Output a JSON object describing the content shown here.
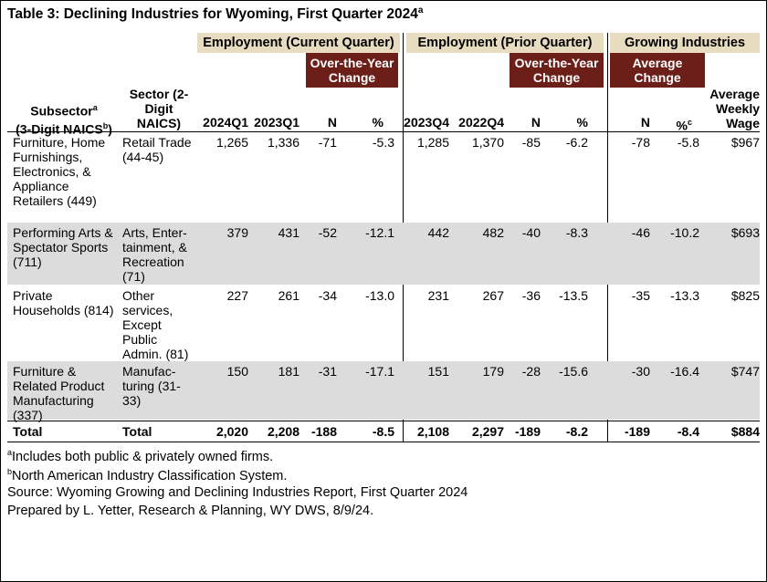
{
  "title": "Table 3: Declining Industries for Wyoming, First Quarter 2024",
  "title_sup": "a",
  "groups": {
    "current": "Employment (Current Quarter)",
    "prior": "Employment (Prior Quarter)",
    "growing": "Growing Industries"
  },
  "subgroups": {
    "current_change": "Over-the-Year Change",
    "prior_change": "Over-the-Year Change",
    "avg_change": "Average Change"
  },
  "headers": {
    "subsector_line1": "Subsector",
    "subsector_sup": "a",
    "subsector_line2": "(3-Digit NAICS",
    "subsector_sup2": "b",
    "subsector_close": ")",
    "sector": "Sector (2-Digit NAICS)",
    "q2024q1": "2024Q1",
    "q2023q1": "2023Q1",
    "n1": "N",
    "pct1": "%",
    "q2023q4": "2023Q4",
    "q2022q4": "2022Q4",
    "n2": "N",
    "pct2": "%",
    "n3": "N",
    "pct3": "%",
    "pct3_sup": "c",
    "wage": "Average Weekly Wage"
  },
  "rows": [
    {
      "subsector": "Furniture, Home Furnishings, Electronics, & Appliance Retailers (449)",
      "sector": "Retail Trade (44-45)",
      "c1": "1,265",
      "c2": "1,336",
      "c3": "-71",
      "c4": "-5.3",
      "c5": "1,285",
      "c6": "1,370",
      "c7": "-85",
      "c8": "-6.2",
      "c9": "-78",
      "c10": "-5.8",
      "c11": "$967"
    },
    {
      "subsector": "Performing Arts & Spectator Sports (711)",
      "sector": "Arts, Enter-tainment, & Recreation (71)",
      "c1": "379",
      "c2": "431",
      "c3": "-52",
      "c4": "-12.1",
      "c5": "442",
      "c6": "482",
      "c7": "-40",
      "c8": "-8.3",
      "c9": "-46",
      "c10": "-10.2",
      "c11": "$693"
    },
    {
      "subsector": "Private Households (814)",
      "sector": "Other services, Except Public Admin. (81)",
      "c1": "227",
      "c2": "261",
      "c3": "-34",
      "c4": "-13.0",
      "c5": "231",
      "c6": "267",
      "c7": "-36",
      "c8": "-13.5",
      "c9": "-35",
      "c10": "-13.3",
      "c11": "$825"
    },
    {
      "subsector": "Furniture & Related Product Manufacturing (337)",
      "sector": "Manufac-turing (31-33)",
      "c1": "150",
      "c2": "181",
      "c3": "-31",
      "c4": "-17.1",
      "c5": "151",
      "c6": "179",
      "c7": "-28",
      "c8": "-15.6",
      "c9": "-30",
      "c10": "-16.4",
      "c11": "$747"
    }
  ],
  "total": {
    "subsector": "Total",
    "sector": "Total",
    "c1": "2,020",
    "c2": "2,208",
    "c3": "-188",
    "c4": "-8.5",
    "c5": "2,108",
    "c6": "2,297",
    "c7": "-189",
    "c8": "-8.2",
    "c9": "-189",
    "c10": "-8.4",
    "c11": "$884"
  },
  "footnotes": {
    "a_mark": "a",
    "a": "Includes both public & privately owned firms.",
    "b_mark": "b",
    "b": "North American Industry Classification System.",
    "source": "Source: Wyoming Growing and Declining Industries Report, First Quarter 2024",
    "prepared": "Prepared by L. Yetter, Research & Planning, WY DWS, 8/9/24."
  },
  "colors": {
    "group_bg": "#e8dcc0",
    "subgroup_bg": "#6b1f18",
    "row_shade": "#dcdcdc"
  }
}
